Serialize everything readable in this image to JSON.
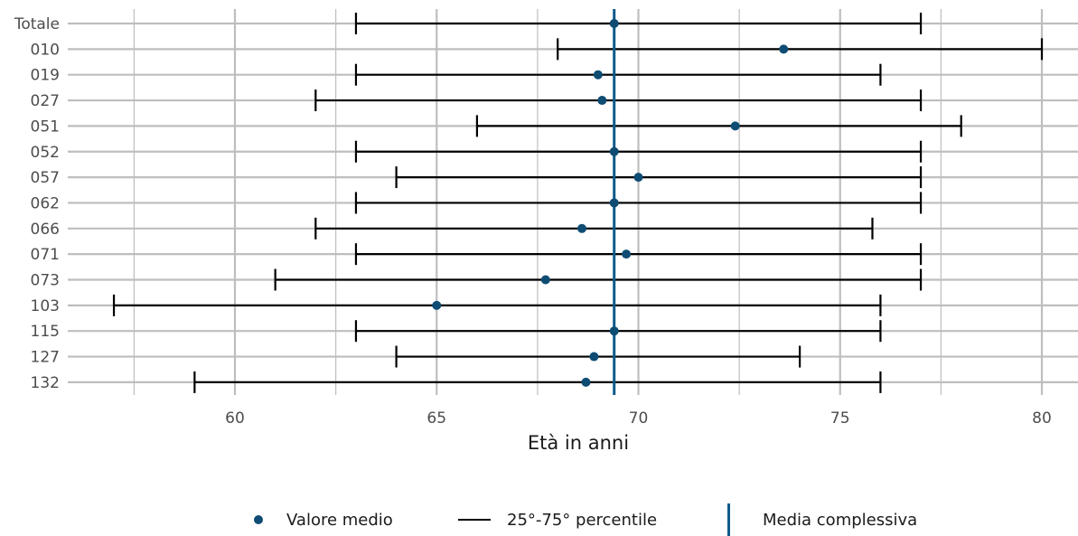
{
  "chart_data": {
    "type": "errorbar-dot",
    "xlabel": "Età in anni",
    "xlim": [
      55,
      81
    ],
    "xticks": [
      60,
      65,
      70,
      75,
      80
    ],
    "grid": true,
    "categories": [
      "Totale",
      "010",
      "019",
      "027",
      "051",
      "052",
      "057",
      "062",
      "066",
      "071",
      "073",
      "103",
      "115",
      "127",
      "132"
    ],
    "mean": [
      69.4,
      73.6,
      69.0,
      69.1,
      72.4,
      69.4,
      70.0,
      69.4,
      68.6,
      69.7,
      67.7,
      65.0,
      69.4,
      68.9,
      68.7
    ],
    "p25": [
      63,
      68,
      63,
      62,
      66,
      63,
      64,
      63,
      62,
      63,
      61,
      57,
      63,
      64,
      59
    ],
    "p75": [
      77,
      80,
      76,
      77,
      78,
      77,
      77,
      77,
      75.8,
      77,
      77,
      76,
      76,
      74,
      76
    ],
    "overall_mean": 69.4,
    "colors": {
      "point": "#0e4c73",
      "overall": "#0e5a8a",
      "errorbar": "#000000",
      "grid": "#bebebe"
    }
  },
  "legend": {
    "mean_label": "Valore medio",
    "range_label": "25°-75° percentile",
    "overall_label": "Media complessiva"
  }
}
